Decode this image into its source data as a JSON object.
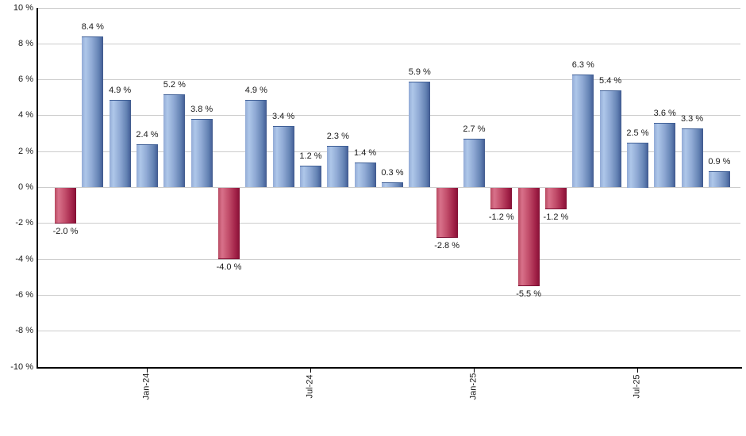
{
  "chart": {
    "background_color": "#ffffff",
    "grid_color": "#cccccc",
    "axis_color": "#000000",
    "text_color": "#1a1a1a",
    "positive_bar_gradient": [
      [
        "#93ABD6",
        0
      ],
      [
        "#AEC7E9",
        18
      ],
      [
        "#8FA9D4",
        48
      ],
      [
        "#6382B3",
        80
      ],
      [
        "#476299",
        96
      ],
      [
        "#3D5786",
        100
      ]
    ],
    "negative_bar_gradient": [
      [
        "#B84A62",
        0
      ],
      [
        "#D8718A",
        18
      ],
      [
        "#C24E6B",
        48
      ],
      [
        "#A32349",
        80
      ],
      [
        "#8C1238",
        96
      ],
      [
        "#7C0D30",
        100
      ]
    ],
    "positive_cap_color": "#3F5F96",
    "negative_cap_color": "#7C1034"
  },
  "chart_data": {
    "type": "bar",
    "title": "",
    "xlabel": "",
    "ylabel": "",
    "ylim": [
      -10,
      10
    ],
    "y_tick_step": 2,
    "grid": true,
    "legend": "none",
    "y_tick_labels": [
      "10 %",
      "8 %",
      "6 %",
      "4 %",
      "2 %",
      "0 %",
      "-2 %",
      "-4 %",
      "-6 %",
      "-8 %",
      "-10 %"
    ],
    "x_ticks": [
      {
        "index": 3,
        "label": "Jan-24"
      },
      {
        "index": 9,
        "label": "Jul-24"
      },
      {
        "index": 15,
        "label": "Jan-25"
      },
      {
        "index": 21,
        "label": "Jul-25"
      }
    ],
    "values": [
      -2.0,
      8.4,
      4.9,
      2.4,
      5.2,
      3.8,
      -4.0,
      4.9,
      3.4,
      1.2,
      2.3,
      1.4,
      0.3,
      5.9,
      -2.8,
      2.7,
      -1.2,
      -5.5,
      -1.2,
      6.3,
      5.4,
      2.5,
      3.6,
      3.3,
      0.9
    ],
    "bar_labels": [
      "-2.0 %",
      "8.4 %",
      "4.9 %",
      "2.4 %",
      "5.2 %",
      "3.8 %",
      "-4.0 %",
      "4.9 %",
      "3.4 %",
      "1.2 %",
      "2.3 %",
      "1.4 %",
      "0.3 %",
      "5.9 %",
      "-2.8 %",
      "2.7 %",
      "-1.2 %",
      "-5.5 %",
      "-1.2 %",
      "6.3 %",
      "5.4 %",
      "2.5 %",
      "3.6 %",
      "3.3 %",
      "0.9 %"
    ]
  }
}
